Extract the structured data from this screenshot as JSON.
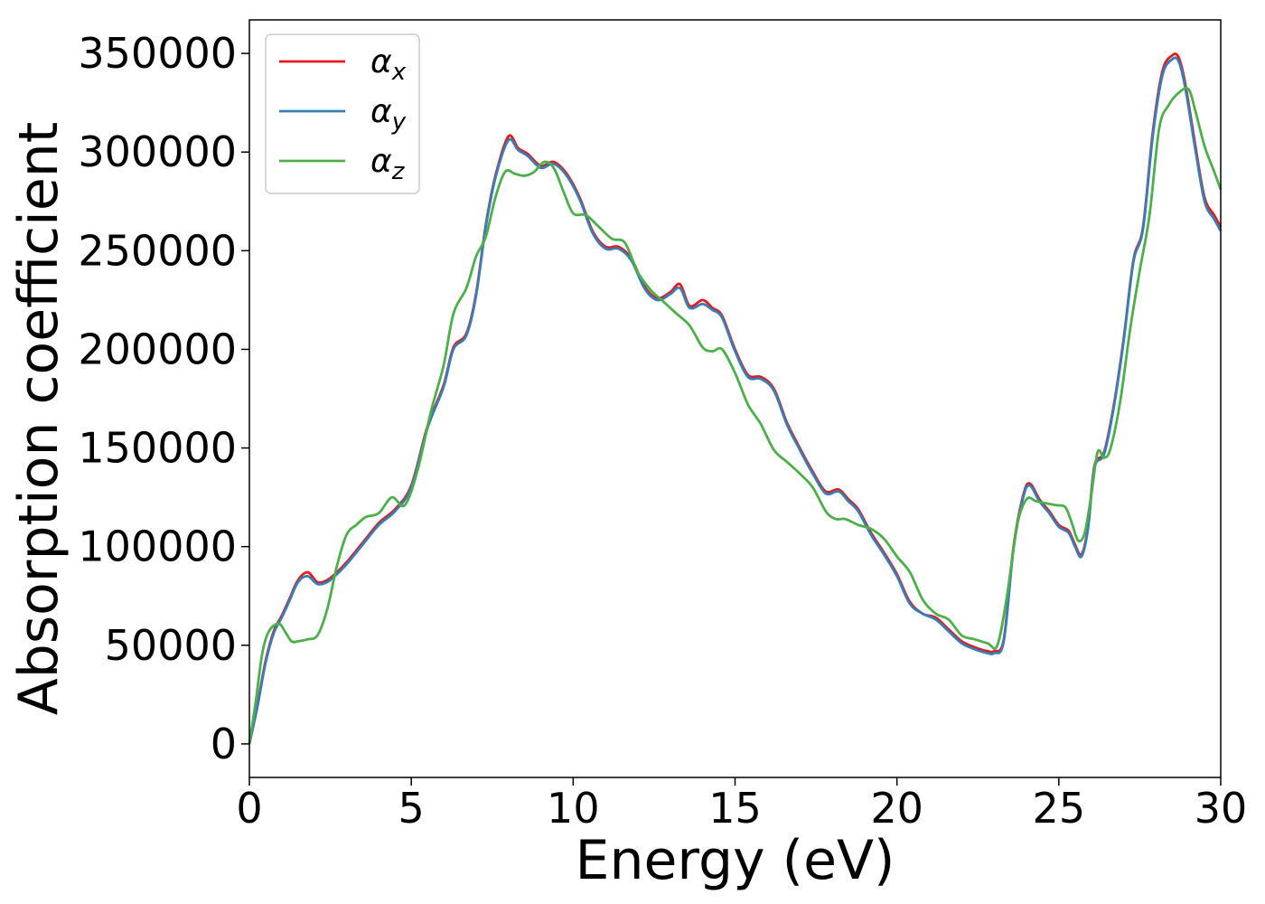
{
  "chart_data": {
    "type": "line",
    "xlabel": "Energy (eV)",
    "ylabel": "Absorption coefficient",
    "xlim": [
      0,
      30
    ],
    "ylim": [
      -17000,
      367000
    ],
    "xticks": [
      0,
      5,
      10,
      15,
      20,
      25,
      30
    ],
    "xtick_labels": [
      "0",
      "5",
      "10",
      "15",
      "20",
      "25",
      "30"
    ],
    "yticks": [
      0,
      50000,
      100000,
      150000,
      200000,
      250000,
      300000,
      350000
    ],
    "ytick_labels": [
      "0",
      "50000",
      "100000",
      "150000",
      "200000",
      "250000",
      "300000",
      "350000"
    ],
    "grid": false,
    "legend_position": "top-left",
    "series": [
      {
        "name": "α",
        "subscript": "x",
        "color": "#e41a1c",
        "x": [
          0,
          0.25,
          0.5,
          0.75,
          1.0,
          1.25,
          1.5,
          1.8,
          2.1,
          2.4,
          2.7,
          3.0,
          3.5,
          4.0,
          4.5,
          5.0,
          5.5,
          6.0,
          6.3,
          6.7,
          7.0,
          7.3,
          7.6,
          8.0,
          8.3,
          8.6,
          9.0,
          9.4,
          9.8,
          10.2,
          10.6,
          11.0,
          11.4,
          11.8,
          12.2,
          12.6,
          13.0,
          13.3,
          13.6,
          14.0,
          14.3,
          14.6,
          15.0,
          15.4,
          15.8,
          16.2,
          16.6,
          17.0,
          17.4,
          17.8,
          18.2,
          18.5,
          18.8,
          19.2,
          19.6,
          20.0,
          20.4,
          20.8,
          21.2,
          21.6,
          22.0,
          22.4,
          22.8,
          23.0,
          23.3,
          23.6,
          23.9,
          24.1,
          24.4,
          24.7,
          25.0,
          25.3,
          25.5,
          25.7,
          25.9,
          26.1,
          26.4,
          26.7,
          27.0,
          27.3,
          27.6,
          27.9,
          28.2,
          28.5,
          28.7,
          28.9,
          29.2,
          29.5,
          29.8,
          30.0
        ],
        "y": [
          0,
          20000,
          42000,
          57000,
          65000,
          74000,
          83000,
          87000,
          82000,
          83000,
          87000,
          92000,
          102000,
          112000,
          119000,
          131000,
          161000,
          182000,
          201000,
          208000,
          228000,
          263000,
          288000,
          308000,
          302000,
          299000,
          293000,
          295000,
          289000,
          277000,
          260000,
          252000,
          252000,
          246000,
          232000,
          226000,
          229000,
          233000,
          222000,
          225000,
          221000,
          217000,
          200000,
          187000,
          186000,
          180000,
          163000,
          150000,
          138000,
          128000,
          129000,
          124000,
          119000,
          107000,
          97000,
          86000,
          72000,
          66000,
          64000,
          58000,
          52000,
          49000,
          47000,
          47000,
          53000,
          100000,
          126000,
          132000,
          124000,
          118000,
          111000,
          108000,
          101000,
          96000,
          110000,
          141000,
          148000,
          172000,
          205000,
          245000,
          262000,
          310000,
          341000,
          349000,
          348000,
          335000,
          305000,
          277000,
          268000,
          262000
        ]
      },
      {
        "name": "α",
        "subscript": "y",
        "color": "#377eb8",
        "x": [
          0,
          0.25,
          0.5,
          0.75,
          1.0,
          1.25,
          1.5,
          1.8,
          2.1,
          2.4,
          2.7,
          3.0,
          3.5,
          4.0,
          4.5,
          5.0,
          5.5,
          6.0,
          6.3,
          6.7,
          7.0,
          7.3,
          7.6,
          8.0,
          8.3,
          8.6,
          9.0,
          9.4,
          9.8,
          10.2,
          10.6,
          11.0,
          11.4,
          11.8,
          12.2,
          12.6,
          13.0,
          13.3,
          13.6,
          14.0,
          14.3,
          14.6,
          15.0,
          15.4,
          15.8,
          16.2,
          16.6,
          17.0,
          17.4,
          17.8,
          18.2,
          18.5,
          18.8,
          19.2,
          19.6,
          20.0,
          20.4,
          20.8,
          21.2,
          21.6,
          22.0,
          22.4,
          22.8,
          23.0,
          23.3,
          23.6,
          23.9,
          24.1,
          24.4,
          24.7,
          25.0,
          25.3,
          25.5,
          25.7,
          25.9,
          26.1,
          26.4,
          26.7,
          27.0,
          27.3,
          27.6,
          27.9,
          28.2,
          28.5,
          28.7,
          28.9,
          29.2,
          29.5,
          29.8,
          30.0
        ],
        "y": [
          0,
          19000,
          41000,
          56000,
          64000,
          73000,
          82000,
          85000,
          81000,
          82000,
          86000,
          91000,
          101000,
          111000,
          118000,
          130000,
          160000,
          181000,
          200000,
          207000,
          227000,
          262000,
          287000,
          306000,
          301000,
          298000,
          292000,
          294000,
          288000,
          276000,
          259000,
          251000,
          251000,
          245000,
          231000,
          225000,
          228000,
          231000,
          221000,
          223000,
          220000,
          216000,
          199000,
          186000,
          185000,
          179000,
          162000,
          149000,
          137000,
          127000,
          128000,
          123000,
          118000,
          106000,
          96000,
          85000,
          71000,
          66000,
          63000,
          57000,
          51000,
          48000,
          46000,
          46000,
          52000,
          99000,
          125000,
          131000,
          123000,
          117000,
          110000,
          107000,
          100000,
          95000,
          109000,
          140000,
          147000,
          171000,
          204000,
          244000,
          261000,
          308000,
          339000,
          347000,
          346000,
          333000,
          303000,
          275000,
          266000,
          260000
        ]
      },
      {
        "name": "α",
        "subscript": "z",
        "color": "#4daf4a",
        "x": [
          0,
          0.2,
          0.4,
          0.6,
          0.9,
          1.1,
          1.3,
          1.5,
          1.8,
          2.1,
          2.4,
          2.7,
          3.0,
          3.3,
          3.6,
          4.0,
          4.4,
          4.8,
          5.2,
          5.6,
          6.0,
          6.3,
          6.7,
          7.0,
          7.3,
          7.6,
          7.9,
          8.2,
          8.5,
          8.8,
          9.1,
          9.4,
          9.7,
          10.0,
          10.4,
          10.8,
          11.2,
          11.6,
          12.0,
          12.4,
          12.8,
          13.2,
          13.6,
          14.0,
          14.3,
          14.6,
          15.0,
          15.4,
          15.8,
          16.2,
          16.6,
          17.0,
          17.4,
          17.8,
          18.1,
          18.4,
          18.8,
          19.2,
          19.6,
          20.0,
          20.4,
          20.8,
          21.2,
          21.6,
          22.0,
          22.4,
          22.8,
          23.1,
          23.4,
          23.7,
          24.0,
          24.3,
          24.6,
          24.9,
          25.2,
          25.4,
          25.6,
          25.8,
          26.0,
          26.2,
          26.4,
          26.6,
          26.9,
          27.2,
          27.5,
          27.8,
          28.1,
          28.4,
          28.7,
          29.0,
          29.2,
          29.5,
          29.8,
          30.0
        ],
        "y": [
          0,
          22000,
          46000,
          57000,
          61000,
          57000,
          52000,
          52000,
          53000,
          55000,
          68000,
          90000,
          106000,
          111000,
          115000,
          117000,
          125000,
          121000,
          139000,
          168000,
          192000,
          218000,
          231000,
          247000,
          257000,
          277000,
          290000,
          289000,
          288000,
          290000,
          295000,
          292000,
          280000,
          269000,
          268000,
          262000,
          256000,
          254000,
          239000,
          230000,
          224000,
          218000,
          212000,
          201000,
          199000,
          200000,
          188000,
          172000,
          162000,
          149000,
          143000,
          137000,
          130000,
          118000,
          114000,
          114000,
          111000,
          109000,
          104000,
          95000,
          87000,
          73000,
          66000,
          63000,
          55000,
          53000,
          51000,
          50000,
          75000,
          110000,
          124000,
          123000,
          122000,
          121000,
          120000,
          112000,
          103000,
          107000,
          126000,
          148000,
          145000,
          150000,
          174000,
          210000,
          240000,
          268000,
          312000,
          324000,
          330000,
          332000,
          322000,
          303000,
          290000,
          281000
        ]
      }
    ]
  }
}
